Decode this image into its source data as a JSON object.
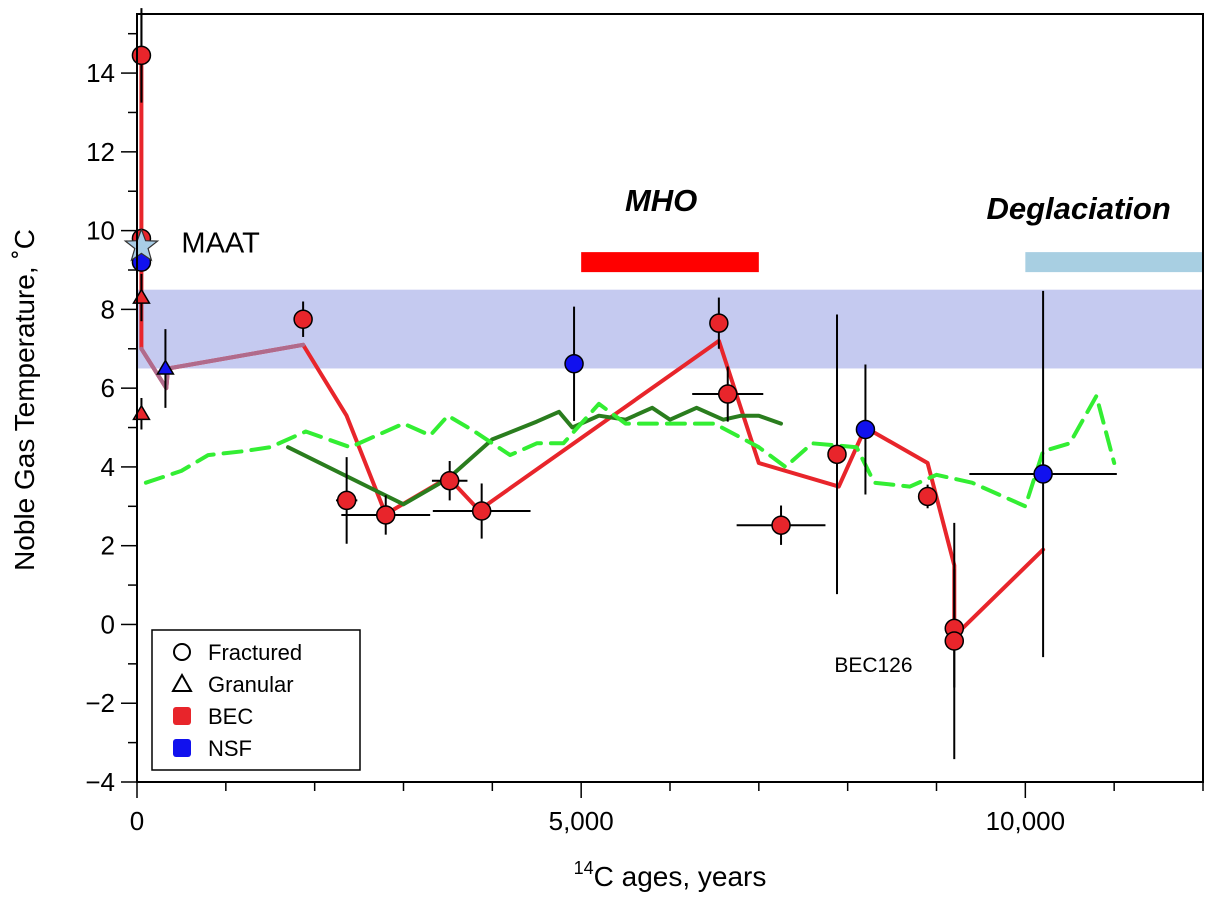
{
  "chart_data": {
    "type": "scatter",
    "xlabel": {
      "sup": "14",
      "text": "C ages, years"
    },
    "ylabel": "Noble Gas Temperature, ˚C",
    "xlim": [
      0,
      12000
    ],
    "ylim": [
      -4,
      15.5
    ],
    "x_ticks": [
      {
        "value": 0,
        "label": "0"
      },
      {
        "value": 5000,
        "label": "5,000"
      },
      {
        "value": 10000,
        "label": "10,000"
      }
    ],
    "y_ticks": [
      {
        "value": -4,
        "label": "−4"
      },
      {
        "value": -2,
        "label": "−2"
      },
      {
        "value": 0,
        "label": "0"
      },
      {
        "value": 2,
        "label": "2"
      },
      {
        "value": 4,
        "label": "4"
      },
      {
        "value": 6,
        "label": "6"
      },
      {
        "value": 8,
        "label": "8"
      },
      {
        "value": 10,
        "label": "10"
      },
      {
        "value": 12,
        "label": "12"
      },
      {
        "value": 14,
        "label": "14"
      }
    ],
    "grid": false,
    "band": {
      "y0": 6.5,
      "y1": 8.5,
      "color": "#c5caf0"
    },
    "periods": [
      {
        "label": "MHO",
        "x0": 5000,
        "x1": 7000,
        "y": 9.2,
        "color": "#ff0000",
        "label_x": 5900,
        "label_y": 10.5
      },
      {
        "label": "Deglaciation",
        "x0": 10000,
        "x1": 12000,
        "y": 9.2,
        "color": "#a8cfe2",
        "label_x": 10600,
        "label_y": 10.3
      }
    ],
    "annotations": [
      {
        "text": "MAAT",
        "x": 500,
        "y": 9.7,
        "size": 29
      },
      {
        "text": "BEC126",
        "x": 7850,
        "y": -0.95,
        "size": 21
      }
    ],
    "maat_star": {
      "x": 50,
      "y": 9.6,
      "color": "#a9cde6"
    },
    "lines": [
      {
        "name": "BEC",
        "color": "#e8252b",
        "width": 4,
        "dash": "",
        "points": [
          [
            50,
            14.5
          ],
          [
            50,
            11
          ],
          [
            50,
            7
          ],
          [
            330,
            6
          ],
          [
            350,
            6.5
          ],
          [
            1870,
            7.1
          ],
          [
            2360,
            5.3
          ],
          [
            2800,
            2.8
          ],
          [
            3480,
            3.7
          ],
          [
            3560,
            3.6
          ],
          [
            3850,
            2.9
          ],
          [
            6550,
            7.2
          ],
          [
            7000,
            4.1
          ],
          [
            7900,
            3.5
          ],
          [
            8200,
            5
          ],
          [
            8900,
            4.1
          ],
          [
            9200,
            1.5
          ],
          [
            9200,
            -0.3
          ],
          [
            10200,
            1.9
          ]
        ]
      },
      {
        "name": "pink-segment",
        "color": "#b06b8c",
        "width": 4,
        "dash": "",
        "points": [
          [
            50,
            7
          ],
          [
            330,
            6
          ],
          [
            350,
            6.5
          ],
          [
            1870,
            7.1
          ]
        ]
      },
      {
        "name": "green-solid",
        "color": "#2a7d1e",
        "width": 4,
        "dash": "",
        "points": [
          [
            1700,
            4.5
          ],
          [
            3000,
            3.05
          ],
          [
            3500,
            3.7
          ],
          [
            4000,
            4.7
          ],
          [
            4500,
            5.15
          ],
          [
            4750,
            5.4
          ],
          [
            4900,
            5
          ],
          [
            5200,
            5.3
          ],
          [
            5500,
            5.2
          ],
          [
            5800,
            5.5
          ],
          [
            6000,
            5.2
          ],
          [
            6300,
            5.5
          ],
          [
            6600,
            5.2
          ],
          [
            6800,
            5.3
          ],
          [
            7000,
            5.3
          ],
          [
            7250,
            5.1
          ]
        ]
      },
      {
        "name": "green-dashed",
        "color": "#33ee33",
        "width": 4,
        "dash": "18,10",
        "points": [
          [
            100,
            3.6
          ],
          [
            500,
            3.9
          ],
          [
            800,
            4.3
          ],
          [
            1200,
            4.4
          ],
          [
            1500,
            4.5
          ],
          [
            1900,
            4.9
          ],
          [
            2400,
            4.5
          ],
          [
            3000,
            5.1
          ],
          [
            3300,
            4.8
          ],
          [
            3500,
            5.3
          ],
          [
            3800,
            4.9
          ],
          [
            4200,
            4.3
          ],
          [
            4500,
            4.6
          ],
          [
            4800,
            4.6
          ],
          [
            5200,
            5.6
          ],
          [
            5500,
            5.1
          ],
          [
            6000,
            5.1
          ],
          [
            6500,
            5.1
          ],
          [
            7000,
            4.5
          ],
          [
            7300,
            4.0
          ],
          [
            7600,
            4.6
          ],
          [
            8100,
            4.5
          ],
          [
            8300,
            3.6
          ],
          [
            8700,
            3.5
          ],
          [
            9000,
            3.8
          ],
          [
            9400,
            3.6
          ],
          [
            9700,
            3.3
          ],
          [
            10000,
            3.0
          ],
          [
            10200,
            4.4
          ],
          [
            10500,
            4.6
          ],
          [
            10800,
            5.8
          ],
          [
            11000,
            4.1
          ]
        ]
      }
    ],
    "points": [
      {
        "x": 50,
        "y": 14.45,
        "shape": "circle",
        "group": "BEC",
        "yerr": 1.2
      },
      {
        "x": 1870,
        "y": 7.75,
        "shape": "circle",
        "group": "BEC",
        "yerr": 0.45
      },
      {
        "x": 2360,
        "y": 3.15,
        "shape": "circle",
        "group": "BEC",
        "xerr": 120,
        "yerr": 1.1
      },
      {
        "x": 2800,
        "y": 2.78,
        "shape": "circle",
        "group": "BEC",
        "xerr": 500,
        "yerr": 0.5
      },
      {
        "x": 3520,
        "y": 3.65,
        "shape": "circle",
        "group": "BEC",
        "xerr": 200,
        "yerr": 0.5
      },
      {
        "x": 3880,
        "y": 2.88,
        "shape": "circle",
        "group": "BEC",
        "xerr": 550,
        "yerr": 0.7
      },
      {
        "x": 6550,
        "y": 7.65,
        "shape": "circle",
        "group": "BEC",
        "yerr": 0.65
      },
      {
        "x": 6650,
        "y": 5.85,
        "shape": "circle",
        "group": "BEC",
        "xerr": 400,
        "yerr": 0.7
      },
      {
        "x": 7250,
        "y": 2.52,
        "shape": "circle",
        "group": "BEC",
        "xerr": 500,
        "yerr": 0.5
      },
      {
        "x": 7880,
        "y": 4.32,
        "shape": "circle",
        "group": "BEC",
        "yerr": 3.55
      },
      {
        "x": 8900,
        "y": 3.25,
        "shape": "circle",
        "group": "BEC",
        "yerr": 0.3
      },
      {
        "x": 9200,
        "y": -0.1,
        "shape": "circle",
        "group": "BEC",
        "yerr": 1.5
      },
      {
        "x": 9200,
        "y": -0.42,
        "shape": "circle",
        "group": "BEC",
        "yerr": 3.0
      },
      {
        "x": 50,
        "y": 9.2,
        "shape": "circle",
        "group": "NSF"
      },
      {
        "x": 4920,
        "y": 6.62,
        "shape": "circle",
        "group": "NSF",
        "yerr": 1.45
      },
      {
        "x": 8200,
        "y": 4.95,
        "shape": "circle",
        "group": "NSF",
        "yerr": 1.65
      },
      {
        "x": 10200,
        "y": 3.82,
        "shape": "circle",
        "group": "NSF",
        "xerr": 830,
        "yerr": 4.65
      },
      {
        "x": 50,
        "y": 9.8,
        "shape": "circle",
        "group": "BEC"
      },
      {
        "x": 50,
        "y": 8.3,
        "shape": "triangle",
        "group": "BEC",
        "yerr": 0.6
      },
      {
        "x": 50,
        "y": 5.35,
        "shape": "triangle",
        "group": "BEC",
        "yerr": 0.4
      },
      {
        "x": 320,
        "y": 6.5,
        "shape": "triangle",
        "group": "NSF",
        "yerr": 1.0
      }
    ],
    "group_colors": {
      "BEC": "#e8252b",
      "NSF": "#1111ee"
    },
    "legend": {
      "position": "bottom-left",
      "entries": [
        {
          "label": "Fractured",
          "marker": "circle-open"
        },
        {
          "label": "Granular",
          "marker": "triangle-open"
        },
        {
          "label": "BEC",
          "marker": "square",
          "color": "#e8252b"
        },
        {
          "label": "NSF",
          "marker": "square",
          "color": "#1111ee"
        }
      ]
    }
  }
}
